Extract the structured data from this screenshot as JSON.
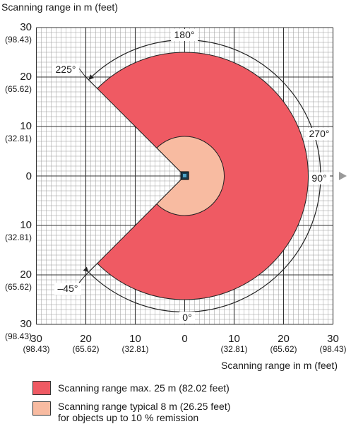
{
  "axes": {
    "y_title": "Scanning range in m (feet)",
    "x_title": "Scanning range in m (feet)",
    "y_ticks": [
      {
        "value": 30,
        "label": "30",
        "sub": "(98.43)"
      },
      {
        "value": 20,
        "label": "20",
        "sub": "(65.62)"
      },
      {
        "value": 10,
        "label": "10",
        "sub": "(32.81)"
      },
      {
        "value": 0,
        "label": "0",
        "sub": ""
      },
      {
        "value": -10,
        "label": "10",
        "sub": "(32.81)"
      },
      {
        "value": -20,
        "label": "20",
        "sub": "(65.62)"
      },
      {
        "value": -30,
        "label": "30",
        "sub": "(98.43)"
      }
    ],
    "x_ticks": [
      {
        "value": -30,
        "label": "30",
        "sub": "(98.43)"
      },
      {
        "value": -20,
        "label": "20",
        "sub": "(65.62)"
      },
      {
        "value": -10,
        "label": "10",
        "sub": "(32.81)"
      },
      {
        "value": 0,
        "label": "0",
        "sub": ""
      },
      {
        "value": 10,
        "label": "10",
        "sub": "(32.81)"
      },
      {
        "value": 20,
        "label": "20",
        "sub": "(65.62)"
      },
      {
        "value": 30,
        "label": "30",
        "sub": "(98.43)"
      }
    ],
    "range": [
      -30,
      30
    ],
    "minor_grid_step": 1,
    "major_grid_step": 10
  },
  "scan_field": {
    "max_range_m": 25,
    "typical_range_m": 8,
    "start_angle_deg": -45,
    "end_angle_deg": 225,
    "max_color": "#ef5a63",
    "typical_color": "#f8bba1"
  },
  "angle_labels": [
    {
      "label": "180°",
      "angle": 180
    },
    {
      "label": "270°",
      "angle": 270
    },
    {
      "label": "90°",
      "angle": 90
    },
    {
      "label": "0°",
      "angle": 0
    },
    {
      "label": "225°",
      "angle": 225
    },
    {
      "label": "–45°",
      "angle": -45
    }
  ],
  "legend": {
    "max_label": "Scanning range max. 25 m (82.02 feet)",
    "typical_line1": "Scanning range typical 8 m (26.25 feet)",
    "typical_line2": "for objects up to 10 % remission"
  }
}
